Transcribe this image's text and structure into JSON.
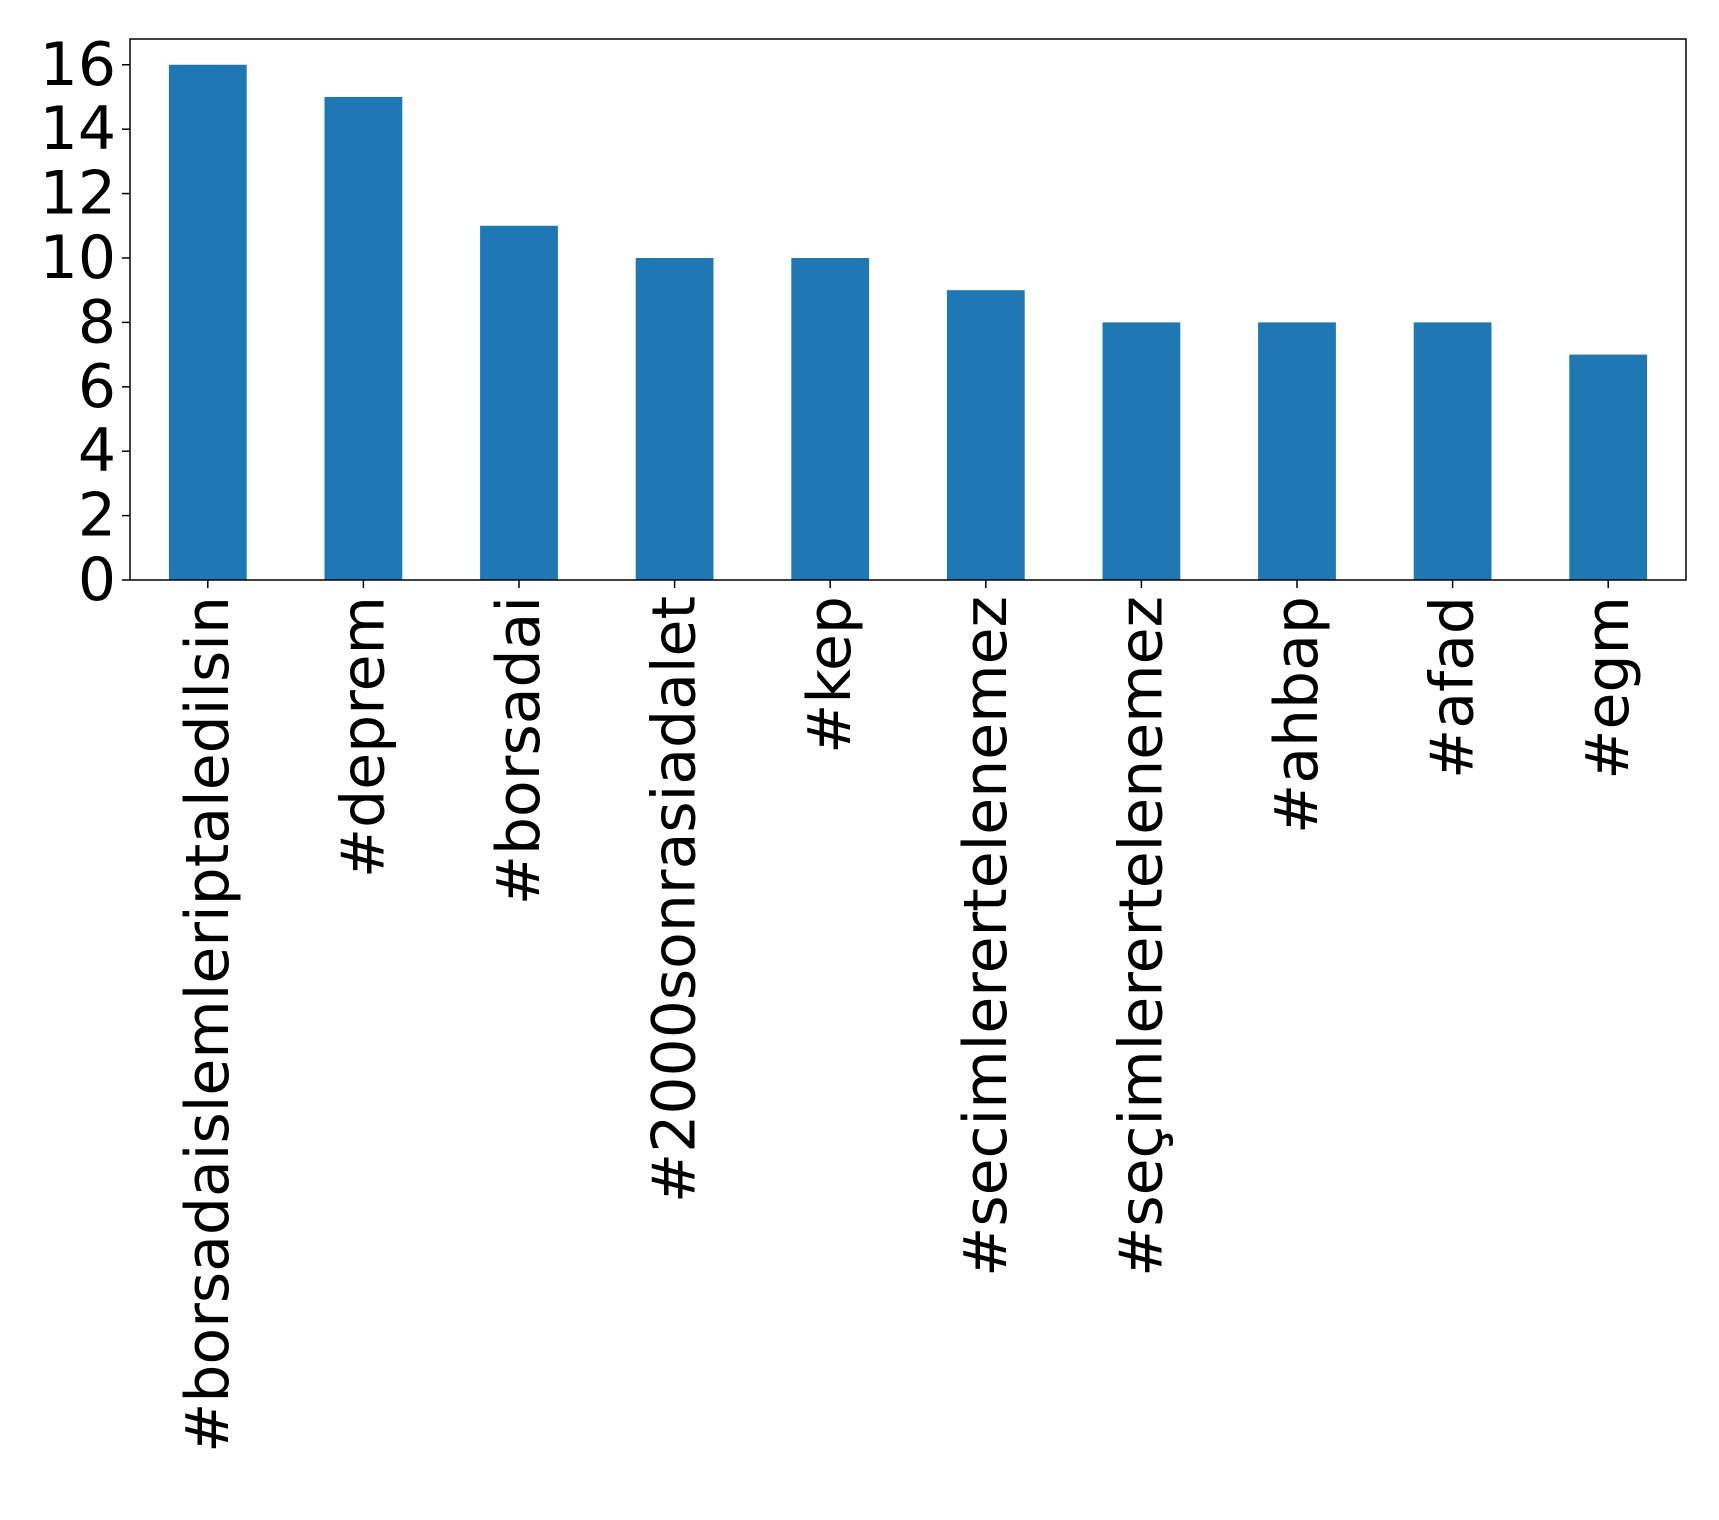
{
  "chart_data": {
    "type": "bar",
    "categories": [
      "#borsadaislemleriptaledilsin",
      "#deprem",
      "#borsadai",
      "#2000sonrasiadalet",
      "#kep",
      "#secimlerertelenemez",
      "#seçimlerertelenemez",
      "#ahbap",
      "#afad",
      "#egm"
    ],
    "values": [
      16,
      15,
      11,
      10,
      10,
      9,
      8,
      8,
      8,
      7
    ],
    "yticks": [
      "0",
      "2",
      "4",
      "6",
      "8",
      "10",
      "12",
      "14",
      "16"
    ],
    "ylim": [
      0,
      16.8
    ],
    "title": "",
    "xlabel": "",
    "ylabel": "",
    "grid": false,
    "legend": "none",
    "bar_color": "#1f77b4"
  }
}
